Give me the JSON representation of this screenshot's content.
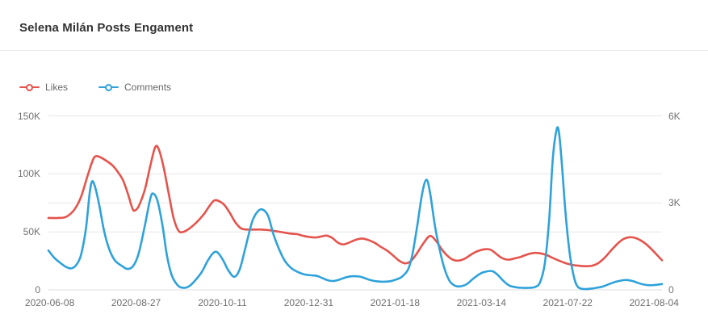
{
  "header": {
    "title": "Selena Milán Posts Engament"
  },
  "chart_data": {
    "type": "line",
    "title": "Selena Milán Posts Engament",
    "smooth": true,
    "grid": true,
    "legend_position": "top-left",
    "legend": [
      "Likes",
      "Comments"
    ],
    "colors": {
      "likes": "#e4544d",
      "comments": "#2fa2da",
      "grid": "#e7e7e7",
      "axis_line": "#dddddd",
      "text": "#6e6e6e"
    },
    "x_axis": {
      "type": "category",
      "tick_labels": [
        "2020-06-08",
        "2020-08-27",
        "2020-10-11",
        "2020-12-31",
        "2021-01-18",
        "2021-03-14",
        "2021-07-22",
        "2021-08-04"
      ]
    },
    "y_axis_left": {
      "series": "Likes",
      "min": 0,
      "max": 150000,
      "ticks": [
        {
          "label": "0",
          "value": 0
        },
        {
          "label": "50K",
          "value": 50000
        },
        {
          "label": "100K",
          "value": 100000
        },
        {
          "label": "150K",
          "value": 150000
        }
      ]
    },
    "y_axis_right": {
      "series": "Comments",
      "min": 0,
      "max": 6000,
      "ticks": [
        {
          "label": "0",
          "value": 0
        },
        {
          "label": "3K",
          "value": 3000
        },
        {
          "label": "6K",
          "value": 6000
        }
      ]
    },
    "series": [
      {
        "name": "Likes",
        "axis": "left",
        "color": "#e4544d",
        "points_format": "[percent-along-x-axis, value]",
        "points": [
          [
            0,
            62000
          ],
          [
            1.6,
            62000
          ],
          [
            2.9,
            63000
          ],
          [
            4.2,
            69000
          ],
          [
            5.3,
            80000
          ],
          [
            6.3,
            97000
          ],
          [
            7.1,
            110000
          ],
          [
            7.6,
            115000
          ],
          [
            8.4,
            114500
          ],
          [
            9.5,
            111000
          ],
          [
            10.5,
            107000
          ],
          [
            11.4,
            101000
          ],
          [
            12.2,
            94000
          ],
          [
            13,
            82000
          ],
          [
            13.7,
            70000
          ],
          [
            14.1,
            68500
          ],
          [
            14.7,
            72000
          ],
          [
            15.7,
            86000
          ],
          [
            16.6,
            107000
          ],
          [
            17.4,
            123000
          ],
          [
            18,
            121000
          ],
          [
            18.8,
            105000
          ],
          [
            19.6,
            83000
          ],
          [
            20.4,
            62000
          ],
          [
            21.2,
            51000
          ],
          [
            22,
            50000
          ],
          [
            23,
            53000
          ],
          [
            24.1,
            58000
          ],
          [
            25.3,
            65000
          ],
          [
            26.2,
            72000
          ],
          [
            27,
            77000
          ],
          [
            27.8,
            76500
          ],
          [
            28.7,
            73000
          ],
          [
            29.6,
            66000
          ],
          [
            30.5,
            58000
          ],
          [
            31.4,
            53000
          ],
          [
            32.4,
            52000
          ],
          [
            33.6,
            52000
          ],
          [
            34.7,
            52000
          ],
          [
            35.9,
            51500
          ],
          [
            37.1,
            50500
          ],
          [
            38.3,
            49500
          ],
          [
            39.5,
            48500
          ],
          [
            40.5,
            48000
          ],
          [
            41.6,
            46500
          ],
          [
            42.6,
            45500
          ],
          [
            43.6,
            45200
          ],
          [
            44.5,
            46000
          ],
          [
            45.3,
            46800
          ],
          [
            46.2,
            45000
          ],
          [
            47.1,
            41000
          ],
          [
            48,
            39200
          ],
          [
            48.9,
            40500
          ],
          [
            50,
            43000
          ],
          [
            51.1,
            44300
          ],
          [
            52.1,
            43000
          ],
          [
            53.2,
            40500
          ],
          [
            54.2,
            37000
          ],
          [
            55.3,
            33500
          ],
          [
            56.3,
            29000
          ],
          [
            57.2,
            25000
          ],
          [
            58.2,
            22800
          ],
          [
            59.1,
            25000
          ],
          [
            60,
            31000
          ],
          [
            61.1,
            40000
          ],
          [
            62.2,
            46500
          ],
          [
            63.2,
            42000
          ],
          [
            64.1,
            35000
          ],
          [
            65,
            29500
          ],
          [
            65.9,
            26000
          ],
          [
            66.8,
            25200
          ],
          [
            67.9,
            27000
          ],
          [
            68.9,
            30500
          ],
          [
            70,
            33500
          ],
          [
            71.1,
            35000
          ],
          [
            72.1,
            34500
          ],
          [
            73,
            31000
          ],
          [
            73.9,
            27500
          ],
          [
            74.9,
            26000
          ],
          [
            75.9,
            27000
          ],
          [
            77,
            28500
          ],
          [
            78,
            30500
          ],
          [
            79.1,
            31800
          ],
          [
            80.1,
            31500
          ],
          [
            81.2,
            30000
          ],
          [
            82.2,
            27500
          ],
          [
            83.3,
            25000
          ],
          [
            84.3,
            23000
          ],
          [
            85.4,
            21500
          ],
          [
            86.4,
            20800
          ],
          [
            87.5,
            20400
          ],
          [
            88.6,
            20800
          ],
          [
            89.6,
            23000
          ],
          [
            90.7,
            28000
          ],
          [
            91.7,
            34000
          ],
          [
            92.8,
            40000
          ],
          [
            93.7,
            43800
          ],
          [
            94.6,
            45300
          ],
          [
            95.5,
            45000
          ],
          [
            96.4,
            43000
          ],
          [
            97.4,
            39500
          ],
          [
            98.3,
            35000
          ],
          [
            99.2,
            30000
          ],
          [
            100,
            25500
          ]
        ]
      },
      {
        "name": "Comments",
        "axis": "right",
        "color": "#2fa2da",
        "points_format": "[percent-along-x-axis, value]",
        "points": [
          [
            0,
            1360
          ],
          [
            0.9,
            1120
          ],
          [
            1.8,
            950
          ],
          [
            2.8,
            800
          ],
          [
            3.7,
            740
          ],
          [
            4.5,
            850
          ],
          [
            5.3,
            1200
          ],
          [
            6.1,
            2100
          ],
          [
            6.7,
            3300
          ],
          [
            7.1,
            3740
          ],
          [
            7.6,
            3550
          ],
          [
            8.3,
            2900
          ],
          [
            9.1,
            2000
          ],
          [
            10,
            1350
          ],
          [
            10.9,
            1000
          ],
          [
            12,
            820
          ],
          [
            12.9,
            720
          ],
          [
            13.8,
            820
          ],
          [
            14.7,
            1250
          ],
          [
            15.7,
            2200
          ],
          [
            16.6,
            3150
          ],
          [
            17.1,
            3320
          ],
          [
            17.8,
            3050
          ],
          [
            18.6,
            2200
          ],
          [
            19.3,
            1200
          ],
          [
            20.1,
            500
          ],
          [
            21.1,
            150
          ],
          [
            22,
            70
          ],
          [
            22.9,
            120
          ],
          [
            23.9,
            320
          ],
          [
            25,
            620
          ],
          [
            25.9,
            980
          ],
          [
            26.8,
            1260
          ],
          [
            27.5,
            1300
          ],
          [
            28.4,
            1050
          ],
          [
            29.3,
            680
          ],
          [
            30.3,
            450
          ],
          [
            31.2,
            720
          ],
          [
            32.1,
            1450
          ],
          [
            33.2,
            2350
          ],
          [
            34.1,
            2700
          ],
          [
            34.9,
            2770
          ],
          [
            35.8,
            2550
          ],
          [
            36.7,
            1900
          ],
          [
            37.8,
            1300
          ],
          [
            38.7,
            950
          ],
          [
            39.7,
            730
          ],
          [
            40.8,
            600
          ],
          [
            41.8,
            530
          ],
          [
            42.9,
            500
          ],
          [
            43.8,
            480
          ],
          [
            44.7,
            400
          ],
          [
            45.7,
            320
          ],
          [
            46.6,
            310
          ],
          [
            47.5,
            360
          ],
          [
            48.6,
            440
          ],
          [
            49.6,
            470
          ],
          [
            50.7,
            460
          ],
          [
            51.6,
            400
          ],
          [
            52.6,
            330
          ],
          [
            53.7,
            290
          ],
          [
            54.7,
            280
          ],
          [
            55.8,
            300
          ],
          [
            56.7,
            360
          ],
          [
            57.6,
            450
          ],
          [
            58.6,
            700
          ],
          [
            59.3,
            1200
          ],
          [
            60.1,
            2200
          ],
          [
            60.9,
            3300
          ],
          [
            61.6,
            3800
          ],
          [
            62.2,
            3350
          ],
          [
            63,
            2200
          ],
          [
            63.8,
            1350
          ],
          [
            64.6,
            700
          ],
          [
            65.4,
            300
          ],
          [
            66.2,
            150
          ],
          [
            67.1,
            120
          ],
          [
            68.2,
            200
          ],
          [
            69.2,
            380
          ],
          [
            70.3,
            550
          ],
          [
            71.3,
            630
          ],
          [
            72.4,
            640
          ],
          [
            73.3,
            500
          ],
          [
            74.2,
            300
          ],
          [
            75.1,
            150
          ],
          [
            76.2,
            90
          ],
          [
            77.2,
            70
          ],
          [
            78.3,
            70
          ],
          [
            79.3,
            100
          ],
          [
            80.1,
            250
          ],
          [
            80.9,
            900
          ],
          [
            81.6,
            2400
          ],
          [
            82.2,
            4500
          ],
          [
            82.8,
            5500
          ],
          [
            83.2,
            5450
          ],
          [
            83.7,
            4300
          ],
          [
            84.3,
            2600
          ],
          [
            85,
            1200
          ],
          [
            85.7,
            400
          ],
          [
            86.3,
            100
          ],
          [
            87.2,
            30
          ],
          [
            88.3,
            40
          ],
          [
            89.3,
            70
          ],
          [
            90.4,
            120
          ],
          [
            91.4,
            200
          ],
          [
            92.5,
            280
          ],
          [
            93.6,
            330
          ],
          [
            94.3,
            340
          ],
          [
            95.3,
            300
          ],
          [
            96.2,
            230
          ],
          [
            97.1,
            180
          ],
          [
            98,
            160
          ],
          [
            98.9,
            170
          ],
          [
            100,
            200
          ]
        ]
      }
    ]
  }
}
